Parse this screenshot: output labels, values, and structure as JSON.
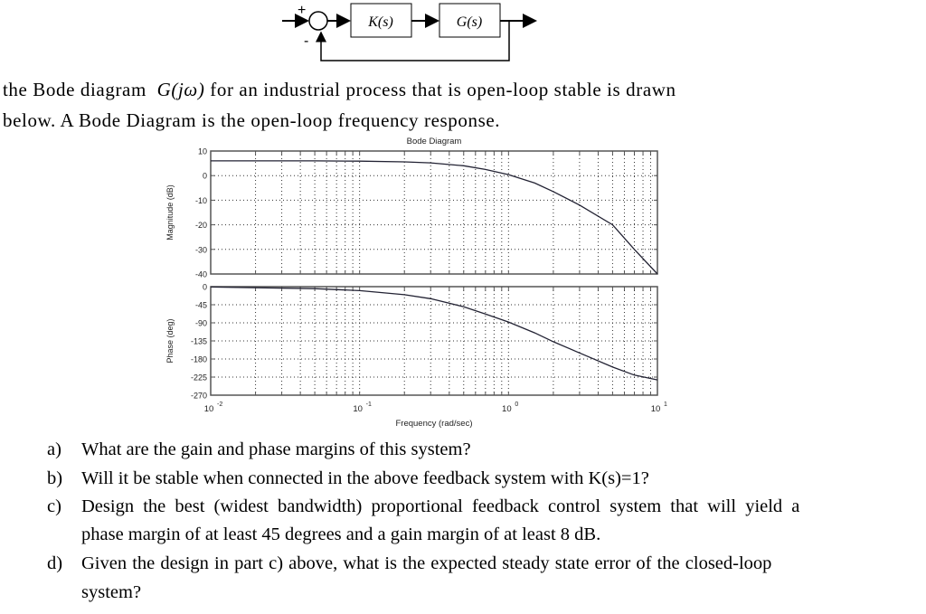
{
  "block_diagram": {
    "plus_sign": "+",
    "minus_sign": "-",
    "controller_label": "K(s)",
    "plant_label": "G(s)"
  },
  "intro": {
    "line1_before": "the Bode diagram",
    "line1_math": "G(jω)",
    "line1_after": "for an industrial process that is open-loop stable is drawn",
    "line2": "below. A Bode Diagram is the open-loop frequency response."
  },
  "questions": [
    {
      "label": "a)",
      "lines": [
        "What are the gain and phase margins of this system?"
      ]
    },
    {
      "label": "b)",
      "lines": [
        "Will it be stable when connected in the above feedback system with K(s)=1?"
      ]
    },
    {
      "label": "c)",
      "lines": [
        "Design the best (widest bandwidth) proportional feedback control system that will yield a",
        "phase margin of at least 45 degrees and a gain margin of at least 8 dB."
      ]
    },
    {
      "label": "d)",
      "lines": [
        "Given the design in part c) above, what is the expected steady state error of the closed-loop",
        "system?"
      ]
    }
  ],
  "chart_data": [
    {
      "type": "line",
      "title": "Bode Diagram",
      "xlabel": "Frequency (rad/sec)",
      "ylabel": "Magnitude (dB)",
      "xscale": "log",
      "xlim": [
        0.01,
        10
      ],
      "ylim": [
        -40,
        10
      ],
      "yticks": [
        10,
        0,
        -10,
        -20,
        -30,
        -40
      ],
      "grid": true,
      "x": [
        0.01,
        0.05,
        0.1,
        0.2,
        0.3,
        0.5,
        0.7,
        1,
        1.5,
        2,
        3,
        5,
        7,
        10
      ],
      "values": [
        6,
        6,
        5.9,
        5.6,
        5.2,
        4,
        2.5,
        0.4,
        -3,
        -6.5,
        -12,
        -20,
        -30,
        -40
      ]
    },
    {
      "type": "line",
      "xlabel": "Frequency (rad/sec)",
      "ylabel": "Phase (deg)",
      "xscale": "log",
      "xlim": [
        0.01,
        10
      ],
      "ylim": [
        -270,
        0
      ],
      "yticks": [
        0,
        -45,
        -90,
        -135,
        -180,
        -225,
        -270
      ],
      "xticks": [
        "10^-2",
        "10^-1",
        "10^0",
        "10^1"
      ],
      "grid": true,
      "x": [
        0.01,
        0.05,
        0.1,
        0.2,
        0.3,
        0.5,
        0.7,
        1,
        1.5,
        2,
        3,
        5,
        7,
        10
      ],
      "values": [
        -1,
        -5,
        -10,
        -20,
        -30,
        -50,
        -68,
        -88,
        -115,
        -137,
        -165,
        -200,
        -220,
        -232
      ]
    }
  ],
  "plot_labels": {
    "title": "Bode Diagram",
    "mag_ylabel": "Magnitude (dB)",
    "phase_ylabel": "Phase (deg)",
    "xlabel": "Frequency  (rad/sec)",
    "mag_ticks": [
      "10",
      "0",
      "-10",
      "-20",
      "-30",
      "-40"
    ],
    "phase_ticks": [
      "0",
      "-45",
      "-90",
      "-135",
      "-180",
      "-225",
      "-270"
    ],
    "x_ticks": [
      "10",
      "10",
      "10",
      "10"
    ],
    "x_exps": [
      "-2",
      "-1",
      "0",
      "1"
    ]
  }
}
